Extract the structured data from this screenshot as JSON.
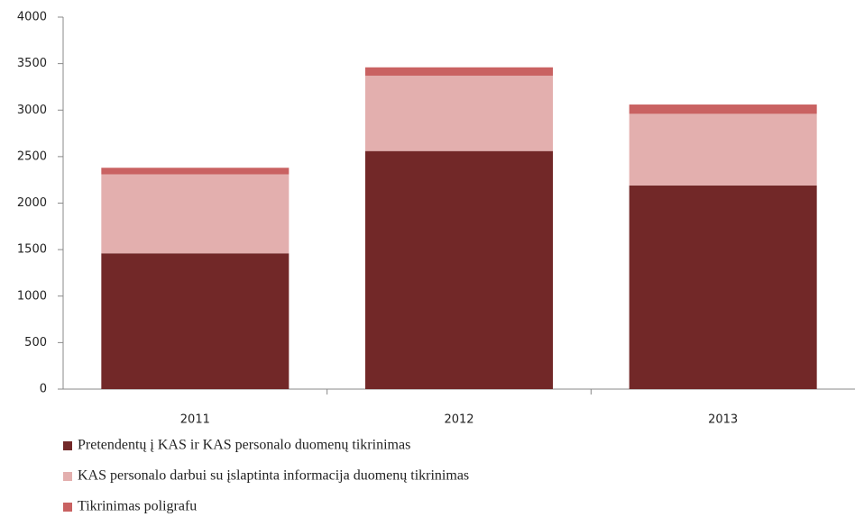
{
  "chart_data": {
    "type": "stacked_bar",
    "categories": [
      "2011",
      "2012",
      "2013"
    ],
    "series": [
      {
        "name": "Pretendentų į KAS ir KAS personalo  duomenų tikrinimas",
        "color": "#722828",
        "values": [
          1460,
          2560,
          2190
        ]
      },
      {
        "name": "KAS personalo  darbui su įslaptinta informacija duomenų tikrinimas",
        "color": "#e3afae",
        "values": [
          850,
          810,
          770
        ]
      },
      {
        "name": "Tikrinimas poligrafu",
        "color": "#c96262",
        "values": [
          70,
          90,
          100
        ]
      }
    ],
    "ylim": [
      0,
      4000
    ],
    "yticks": [
      0,
      500,
      1000,
      1500,
      2000,
      2500,
      3000,
      3500,
      4000
    ],
    "grid": false,
    "legend": "bottom"
  }
}
